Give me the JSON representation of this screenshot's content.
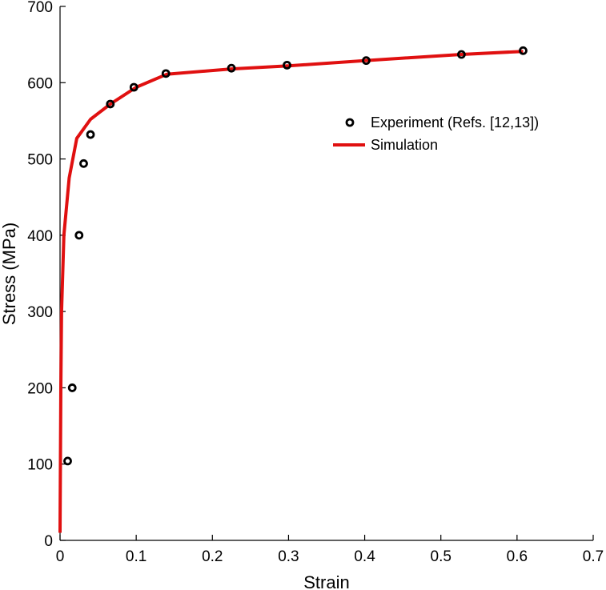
{
  "chart_data": {
    "type": "line",
    "title": "",
    "xlabel": "Strain",
    "ylabel": "Stress (MPa)",
    "xlim": [
      0,
      0.7
    ],
    "ylim": [
      0,
      700
    ],
    "x_ticks": [
      "0",
      "0.1",
      "0.2",
      "0.3",
      "0.4",
      "0.5",
      "0.6",
      "0.7"
    ],
    "y_ticks": [
      "0",
      "100",
      "200",
      "300",
      "400",
      "500",
      "600",
      "700"
    ],
    "grid": false,
    "legend_position": "right, upper-middle",
    "series": [
      {
        "name": "Experiment (Refs. [12,13])",
        "kind": "scatter",
        "marker": "hollow-circle",
        "color": "#000000",
        "points": [
          [
            0.01,
            104
          ],
          [
            0.016,
            200
          ],
          [
            0.025,
            400
          ],
          [
            0.031,
            494
          ],
          [
            0.04,
            532
          ],
          [
            0.066,
            572
          ],
          [
            0.097,
            594
          ],
          [
            0.139,
            612
          ],
          [
            0.225,
            619
          ],
          [
            0.298,
            623
          ],
          [
            0.402,
            629
          ],
          [
            0.527,
            637
          ],
          [
            0.608,
            642
          ]
        ]
      },
      {
        "name": "Simulation",
        "kind": "line",
        "color": "#e01010",
        "points": [
          [
            0.0,
            10
          ],
          [
            0.001,
            200
          ],
          [
            0.002,
            300
          ],
          [
            0.005,
            400
          ],
          [
            0.012,
            475
          ],
          [
            0.022,
            527
          ],
          [
            0.04,
            552
          ],
          [
            0.066,
            572
          ],
          [
            0.1,
            594
          ],
          [
            0.14,
            611
          ],
          [
            0.225,
            618
          ],
          [
            0.3,
            622
          ],
          [
            0.4,
            629
          ],
          [
            0.527,
            637
          ],
          [
            0.608,
            641
          ]
        ]
      }
    ]
  }
}
